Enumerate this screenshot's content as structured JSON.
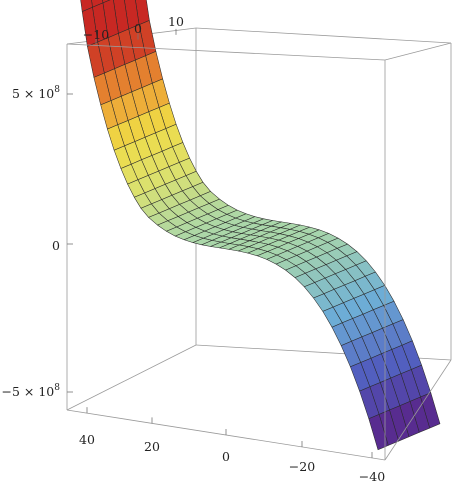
{
  "chart_data": {
    "type": "surface3d",
    "title": "",
    "x_axis": {
      "label": "",
      "range": [
        -15,
        15
      ],
      "ticks": [
        {
          "value": -10,
          "label": "−10"
        },
        {
          "value": 0,
          "label": "0"
        },
        {
          "value": 10,
          "label": "10"
        }
      ]
    },
    "y_axis": {
      "label": "",
      "range": [
        -40,
        45
      ],
      "ticks": [
        {
          "value": 40,
          "label": "40"
        },
        {
          "value": 20,
          "label": "20"
        },
        {
          "value": 0,
          "label": "0"
        },
        {
          "value": -20,
          "label": "−20"
        },
        {
          "value": -40,
          "label": "−40"
        }
      ]
    },
    "z_axis": {
      "label": "",
      "range": [
        -800000000,
        700000000
      ],
      "ticks": [
        {
          "value": 500000000,
          "label": "5 × 10",
          "exp": "8"
        },
        {
          "value": 0,
          "label": "0",
          "exp": ""
        },
        {
          "value": -500000000,
          "label": "−5 × 10",
          "exp": "8"
        }
      ]
    },
    "surface": {
      "formula": "z ≈ 10^4 · y^3 (constant in x)",
      "y_samples": [
        45,
        40,
        30,
        20,
        10,
        0,
        -10,
        -20,
        -30,
        -40
      ],
      "z_samples": [
        911250000,
        640000000,
        270000000,
        80000000,
        10000000,
        0,
        -10000000,
        -80000000,
        -270000000,
        -640000000
      ],
      "colormap": "rainbow (red = high, violet = low)",
      "mesh": "on"
    },
    "box": true,
    "grid": false,
    "legend": "none"
  }
}
